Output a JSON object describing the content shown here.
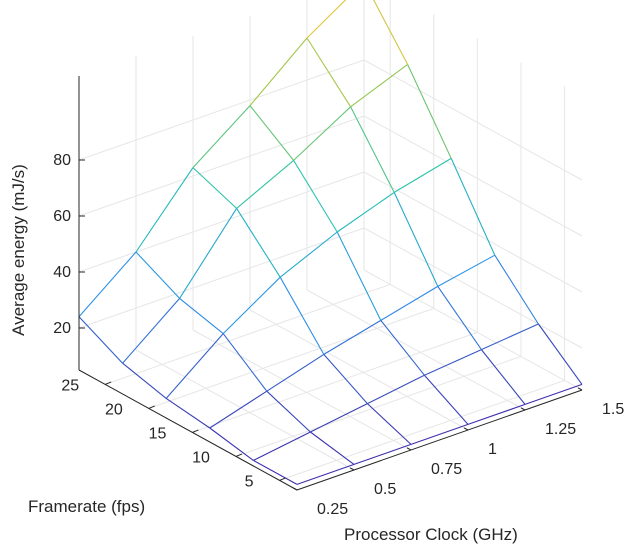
{
  "chart_data": {
    "type": "surface-mesh",
    "xlabel": "Processor Clock (GHz)",
    "ylabel": "Framerate (fps)",
    "zlabel": "Average energy (mJ/s)",
    "x": [
      0.25,
      0.5,
      0.75,
      1.0,
      1.25,
      1.5
    ],
    "y": [
      3,
      8,
      13,
      18,
      23,
      28
    ],
    "x_tick_labels": [
      "0.25",
      "0.5",
      "0.75",
      "1",
      "1.25",
      "1.5"
    ],
    "y_ticks": [
      5,
      10,
      15,
      20,
      25
    ],
    "y_tick_labels": [
      "5",
      "10",
      "15",
      "20",
      "25"
    ],
    "z_ticks": [
      20,
      40,
      60,
      80
    ],
    "z_tick_labels": [
      "20",
      "40",
      "60",
      "80"
    ],
    "zlim": [
      5,
      110
    ],
    "grid": true,
    "colormap": [
      "#3e26a8",
      "#2d8ee8",
      "#20c3b2",
      "#99c64e",
      "#ffc632"
    ],
    "z": [
      [
        7,
        7,
        7,
        7,
        7,
        7
      ],
      [
        7,
        10,
        13,
        16,
        18,
        20
      ],
      [
        10,
        16,
        22,
        27,
        32,
        36
      ],
      [
        12,
        28,
        41,
        50,
        57,
        62
      ],
      [
        16,
        32,
        57,
        67,
        79,
        87
      ],
      [
        24,
        40,
        63,
        78,
        95,
        108
      ]
    ]
  }
}
